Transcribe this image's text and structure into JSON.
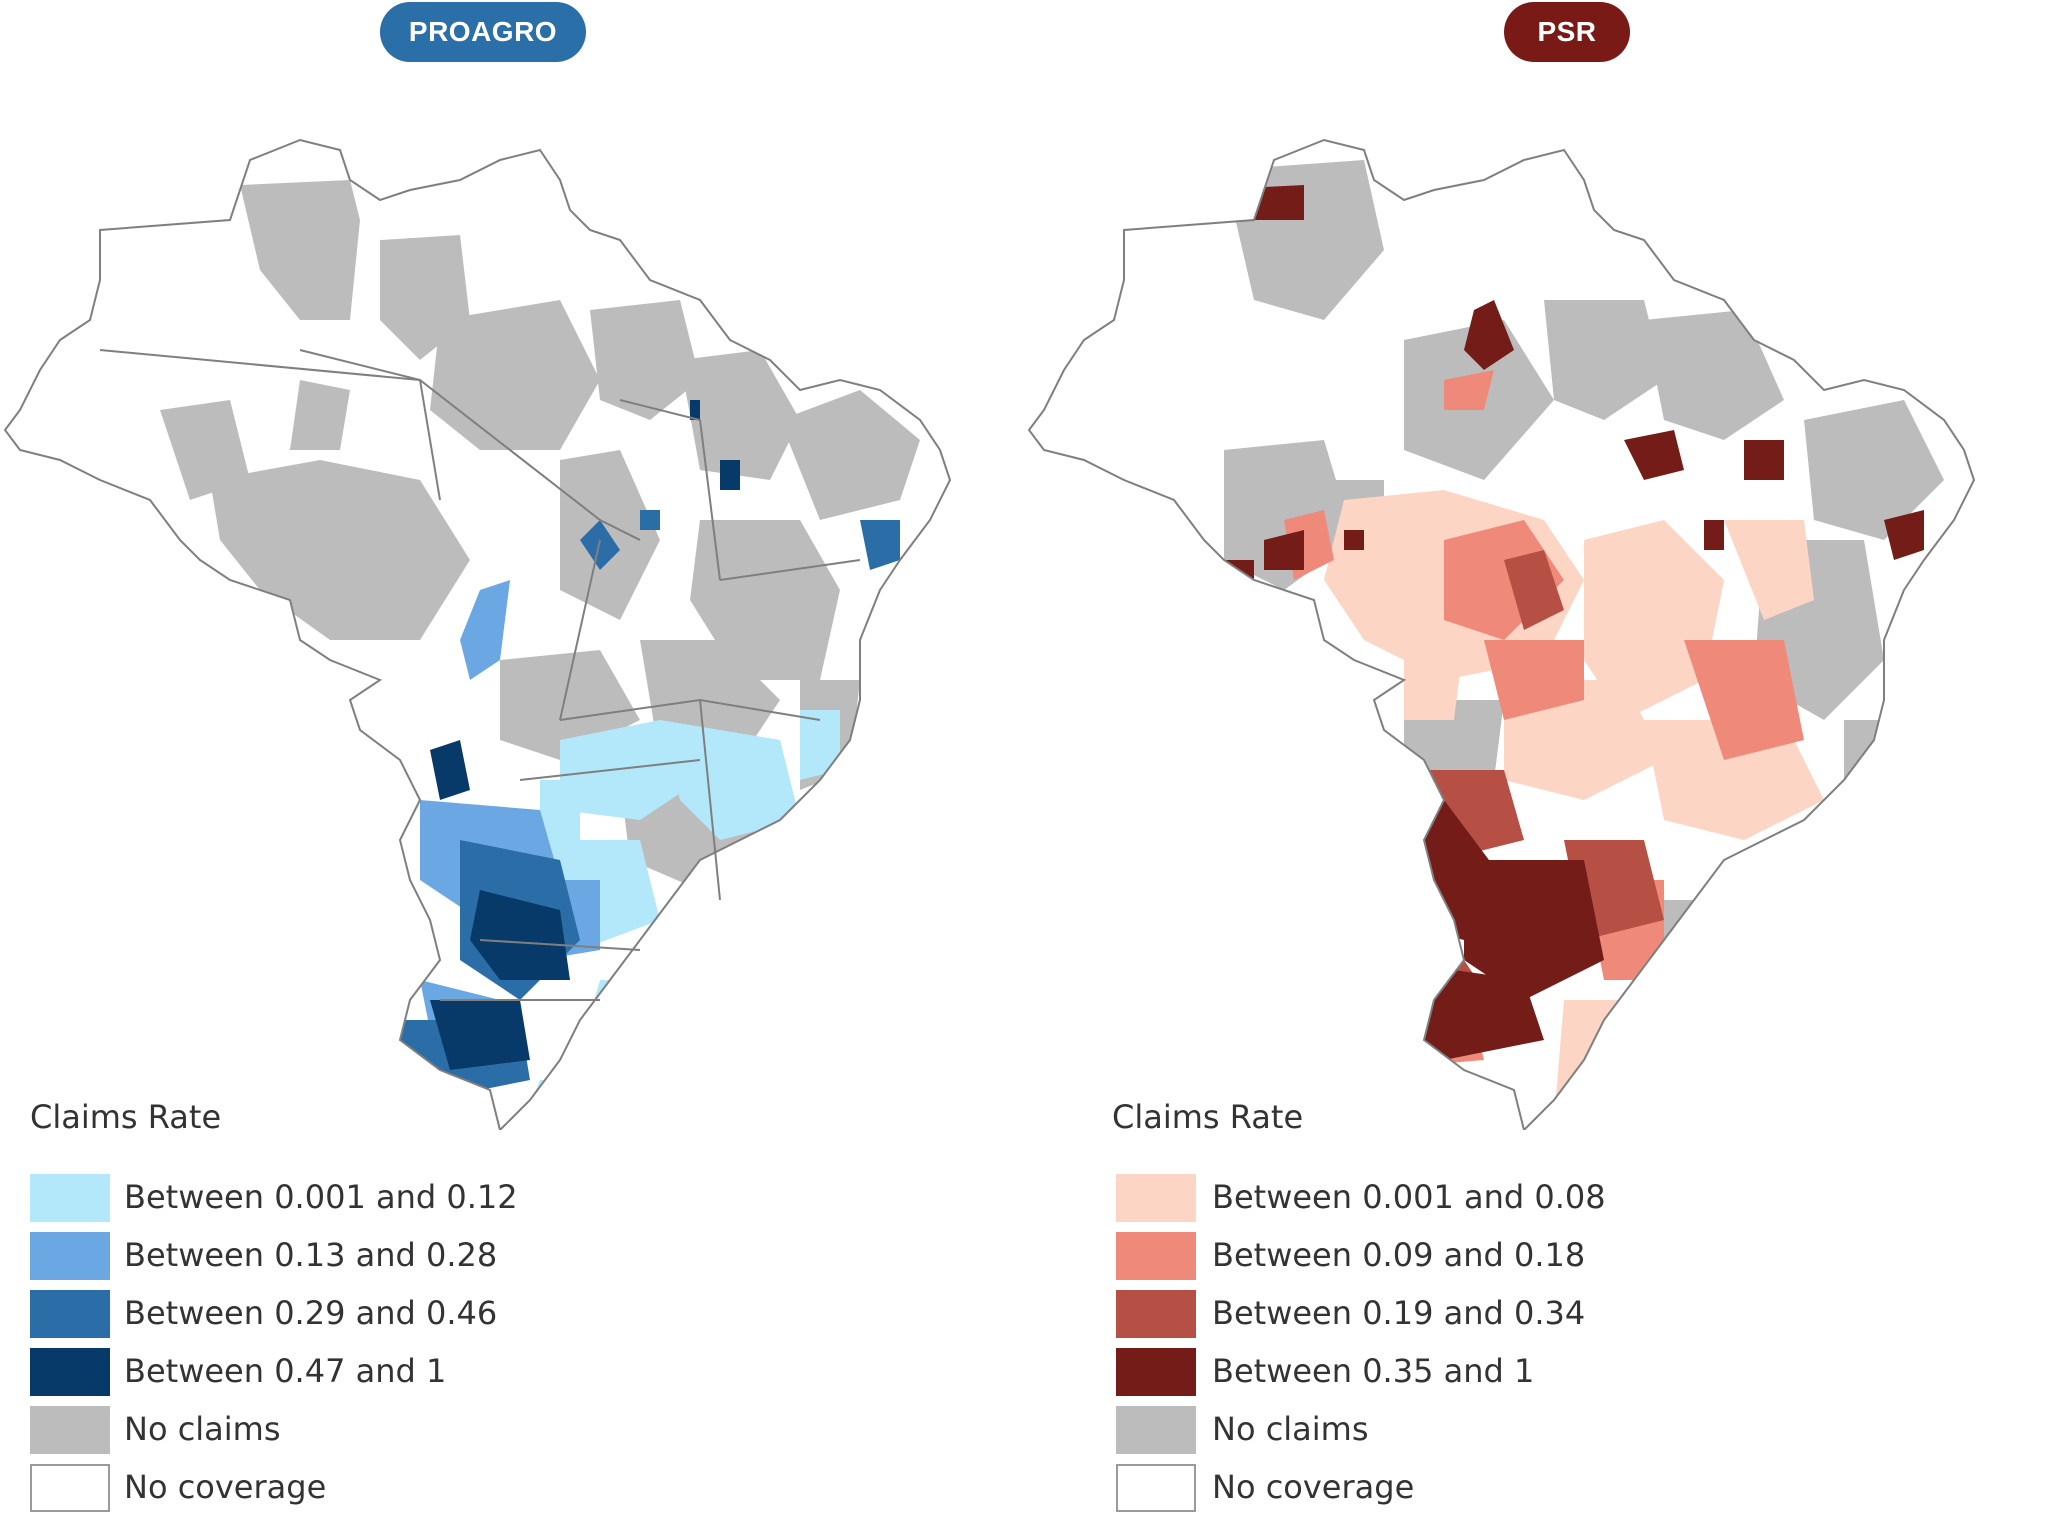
{
  "panels": [
    {
      "title": "PROAGRO",
      "title_bg": "#2a6fa8",
      "legend_title": "Claims Rate",
      "legend": [
        {
          "label": "Between 0.001 and 0.12",
          "color": "#b3e8fb"
        },
        {
          "label": "Between 0.13 and 0.28",
          "color": "#6aa7e3"
        },
        {
          "label": "Between 0.29 and 0.46",
          "color": "#2b6ea7"
        },
        {
          "label": "Between 0.47 and 1",
          "color": "#073a68"
        },
        {
          "label": "No claims",
          "color": "#bcbcbc"
        },
        {
          "label": "No coverage",
          "color": "#ffffff"
        }
      ]
    },
    {
      "title": "PSR",
      "title_bg": "#7a1a17",
      "legend_title": "Claims Rate",
      "legend": [
        {
          "label": "Between 0.001 and 0.08",
          "color": "#fcd5c4"
        },
        {
          "label": "Between 0.09 and 0.18",
          "color": "#ef8a7b"
        },
        {
          "label": "Between 0.19 and 0.34",
          "color": "#b65044"
        },
        {
          "label": "Between 0.35 and 1",
          "color": "#741c18"
        },
        {
          "label": "No claims",
          "color": "#bcbcbc"
        },
        {
          "label": "No coverage",
          "color": "#ffffff"
        }
      ]
    }
  ]
}
